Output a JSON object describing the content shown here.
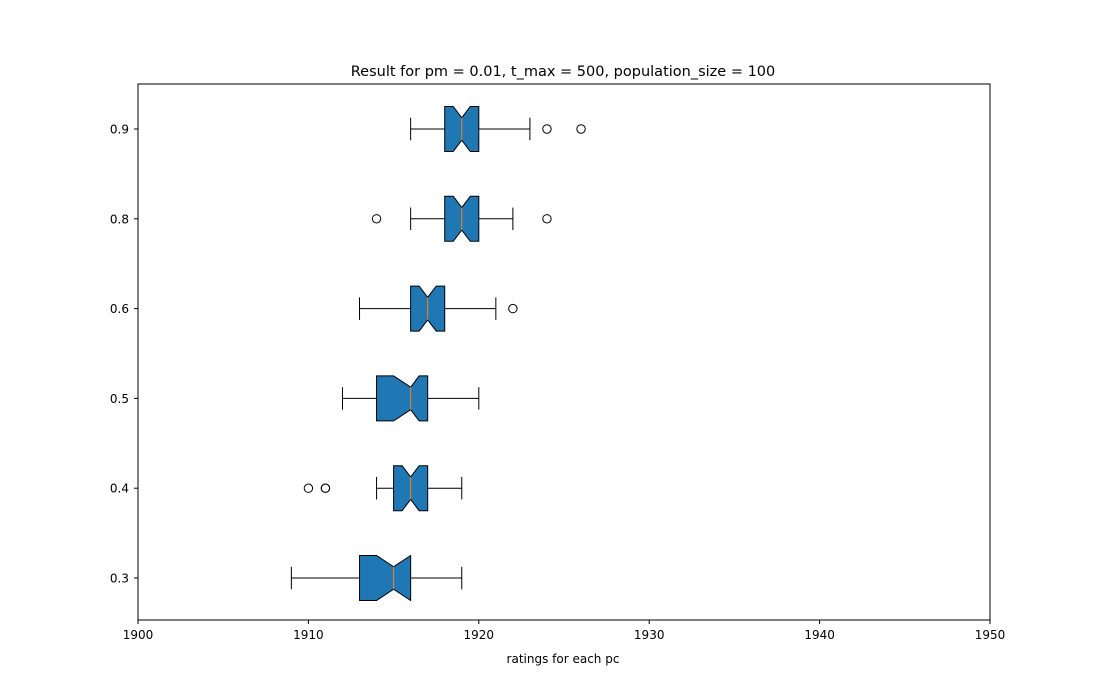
{
  "chart_data": {
    "type": "boxplot",
    "orientation": "horizontal",
    "notched": true,
    "title": "Result for pm = 0.01, t_max = 500, population_size = 100",
    "xlabel": "ratings for each pc",
    "ylabel": "",
    "xlim": [
      1900,
      1950
    ],
    "x_ticks": [
      "1900",
      "1910",
      "1920",
      "1930",
      "1940",
      "1950"
    ],
    "grid": false,
    "legend": "none",
    "colors": {
      "box_fill": "#1f77b4",
      "median": "#ff7f0e",
      "edge": "#000000"
    },
    "boxes": [
      {
        "label": "0.3",
        "whisker_low": 1909,
        "q1": 1913,
        "median": 1915,
        "q3": 1916,
        "whisker_high": 1919,
        "notch_low": 1914,
        "notch_high": 1916,
        "outliers": []
      },
      {
        "label": "0.4",
        "whisker_low": 1914,
        "q1": 1915,
        "median": 1916,
        "q3": 1917,
        "whisker_high": 1919,
        "notch_low": 1915.5,
        "notch_high": 1916.5,
        "outliers": [
          1910,
          1911,
          1911
        ]
      },
      {
        "label": "0.5",
        "whisker_low": 1912,
        "q1": 1914,
        "median": 1916,
        "q3": 1917,
        "whisker_high": 1920,
        "notch_low": 1915,
        "notch_high": 1916.5,
        "outliers": []
      },
      {
        "label": "0.6",
        "whisker_low": 1913,
        "q1": 1916,
        "median": 1917,
        "q3": 1918,
        "whisker_high": 1921,
        "notch_low": 1916.5,
        "notch_high": 1917.5,
        "outliers": [
          1922
        ]
      },
      {
        "label": "0.8",
        "whisker_low": 1916,
        "q1": 1918,
        "median": 1919,
        "q3": 1920,
        "whisker_high": 1922,
        "notch_low": 1918.5,
        "notch_high": 1919.5,
        "outliers": [
          1914,
          1924
        ]
      },
      {
        "label": "0.9",
        "whisker_low": 1916,
        "q1": 1918,
        "median": 1919,
        "q3": 1920,
        "whisker_high": 1923,
        "notch_low": 1918.5,
        "notch_high": 1919.5,
        "outliers": [
          1924,
          1926
        ]
      }
    ]
  }
}
